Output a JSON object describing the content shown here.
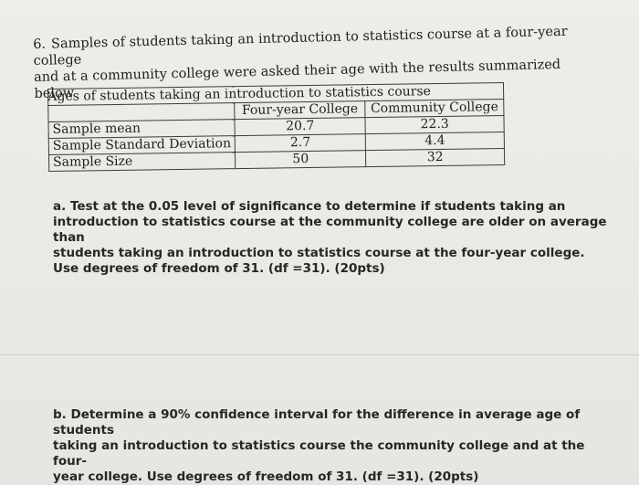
{
  "problem": {
    "number": "6.",
    "intro_line1": "Samples of students taking an introduction to statistics course at a four-year college",
    "intro_line2": "and at a community college were asked their age with the results summarized below"
  },
  "table": {
    "title": "Ages of students taking an introduction to statistics course",
    "headers": [
      "",
      "Four-year College",
      "Community College"
    ],
    "rows": [
      {
        "label": "Sample mean",
        "four_year": "20.7",
        "community": "22.3"
      },
      {
        "label": "Sample Standard Deviation",
        "four_year": "2.7",
        "community": "4.4"
      },
      {
        "label": "Sample Size",
        "four_year": "50",
        "community": "32"
      }
    ]
  },
  "part_a": {
    "line1": "a. Test at the 0.05 level of significance to determine if students taking an",
    "line2": "introduction to statistics course at the community college are older on average than",
    "line3": "students taking an introduction to statistics course at the four-year college.",
    "line4": "Use degrees of freedom of 31. (df =31). (20pts)"
  },
  "part_b": {
    "line1": "b. Determine a 90% confidence interval for the difference in average age of students",
    "line2": "taking an introduction to statistics course the community college and at the four-",
    "line3": "year college. Use degrees of freedom of 31.  (df =31). (20pts)"
  }
}
